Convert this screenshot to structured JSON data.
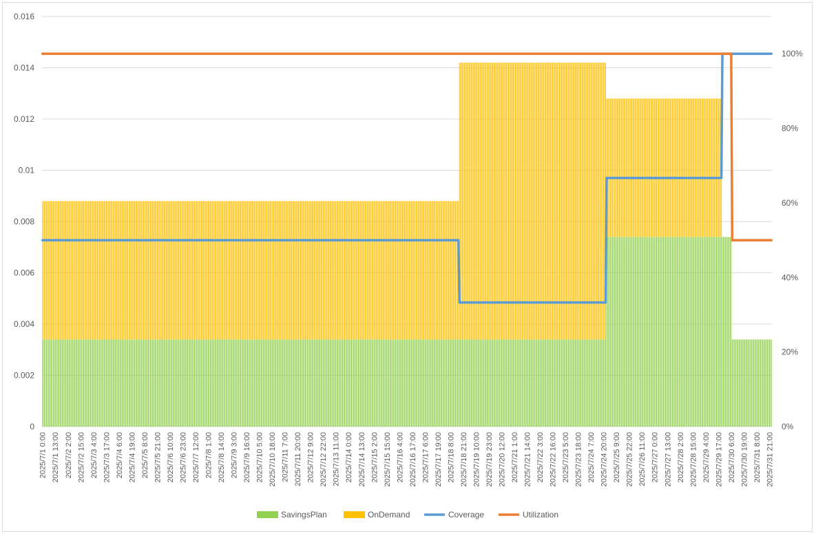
{
  "chart_data": {
    "type": "bar",
    "stacked": true,
    "title": "",
    "xlabel": "",
    "ylabel": "",
    "ylim": [
      0,
      0.016
    ],
    "y_ticks": [
      "0",
      "0.002",
      "0.004",
      "0.006",
      "0.008",
      "0.01",
      "0.012",
      "0.014",
      "0.016"
    ],
    "y2lim": [
      0,
      1.1
    ],
    "y2_ticks": [
      "0%",
      "20%",
      "40%",
      "60%",
      "80%",
      "100%"
    ],
    "grid": true,
    "legend_position": "bottom",
    "x_start": "2025/7/1 0:00",
    "x_end": "2025/7/31 23:00",
    "x_interval_hours": 1,
    "x_tick_labels": [
      "2025/7/1 0:00",
      "2025/7/1 13:00",
      "2025/7/2 2:00",
      "2025/7/2 15:00",
      "2025/7/3 4:00",
      "2025/7/3 17:00",
      "2025/7/4 6:00",
      "2025/7/4 19:00",
      "2025/7/5 8:00",
      "2025/7/5 21:00",
      "2025/7/6 10:00",
      "2025/7/6 23:00",
      "2025/7/7 12:00",
      "2025/7/8 1:00",
      "2025/7/8 14:00",
      "2025/7/9 3:00",
      "2025/7/9 16:00",
      "2025/7/10 5:00",
      "2025/7/10 18:00",
      "2025/7/11 7:00",
      "2025/7/11 20:00",
      "2025/7/12 9:00",
      "2025/7/12 22:00",
      "2025/7/13 11:00",
      "2025/7/14 0:00",
      "2025/7/14 13:00",
      "2025/7/15 2:00",
      "2025/7/15 15:00",
      "2025/7/16 4:00",
      "2025/7/16 17:00",
      "2025/7/17 6:00",
      "2025/7/17 19:00",
      "2025/7/18 8:00",
      "2025/7/18 21:00",
      "2025/7/19 10:00",
      "2025/7/19 23:00",
      "2025/7/20 12:00",
      "2025/7/21 1:00",
      "2025/7/21 14:00",
      "2025/7/22 3:00",
      "2025/7/22 16:00",
      "2025/7/23 5:00",
      "2025/7/23 18:00",
      "2025/7/24 7:00",
      "2025/7/24 20:00",
      "2025/7/25 9:00",
      "2025/7/25 22:00",
      "2025/7/26 11:00",
      "2025/7/27 0:00",
      "2025/7/27 13:00",
      "2025/7/28 2:00",
      "2025/7/28 15:00",
      "2025/7/29 4:00",
      "2025/7/29 17:00",
      "2025/7/30 6:00",
      "2025/7/30 19:00",
      "2025/7/31 8:00",
      "2025/7/31 21:00"
    ],
    "series": [
      {
        "name": "SavingsPlan",
        "kind": "bar",
        "axis": "left",
        "color": "#92d050",
        "segments": [
          {
            "from": "2025/7/1 0:00",
            "to": "2025/7/24 22:00",
            "value": 0.0034
          },
          {
            "from": "2025/7/24 23:00",
            "to": "2025/7/30 6:00",
            "value": 0.0074
          },
          {
            "from": "2025/7/30 7:00",
            "to": "2025/7/31 23:00",
            "value": 0.0034
          }
        ]
      },
      {
        "name": "OnDemand",
        "kind": "bar",
        "axis": "left",
        "color": "#ffc000",
        "segments": [
          {
            "from": "2025/7/1 0:00",
            "to": "2025/7/18 16:00",
            "value": 0.0054
          },
          {
            "from": "2025/7/18 17:00",
            "to": "2025/7/24 22:00",
            "value": 0.0108
          },
          {
            "from": "2025/7/24 23:00",
            "to": "2025/7/29 20:00",
            "value": 0.0054
          },
          {
            "from": "2025/7/29 21:00",
            "to": "2025/7/31 23:00",
            "value": 0
          }
        ]
      },
      {
        "name": "Coverage",
        "kind": "line",
        "axis": "right",
        "color": "#5b9bd5",
        "segments": [
          {
            "from": "2025/7/1 0:00",
            "to": "2025/7/18 16:00",
            "value": 0.5
          },
          {
            "from": "2025/7/18 17:00",
            "to": "2025/7/24 22:00",
            "value": 0.333
          },
          {
            "from": "2025/7/24 23:00",
            "to": "2025/7/29 20:00",
            "value": 0.667
          },
          {
            "from": "2025/7/29 21:00",
            "to": "2025/7/31 23:00",
            "value": 1.0
          }
        ]
      },
      {
        "name": "Utilization",
        "kind": "line",
        "axis": "right",
        "color": "#ed7d31",
        "segments": [
          {
            "from": "2025/7/1 0:00",
            "to": "2025/7/30 6:00",
            "value": 1.0
          },
          {
            "from": "2025/7/30 7:00",
            "to": "2025/7/31 23:00",
            "value": 0.5
          }
        ]
      }
    ]
  }
}
